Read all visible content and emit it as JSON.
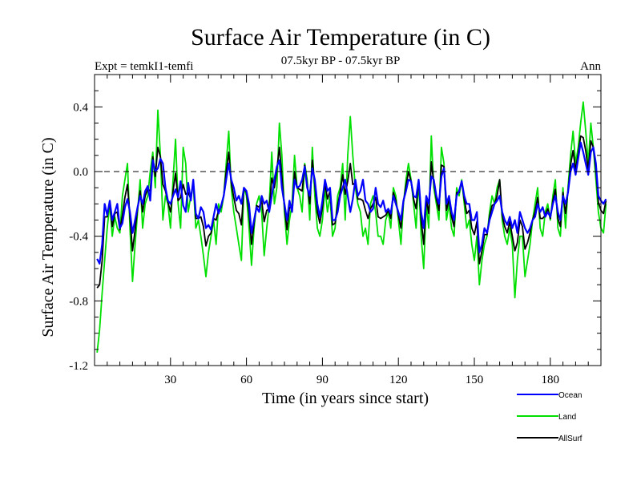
{
  "chart_data": {
    "type": "line",
    "title": "Surface Air Temperature (in C)",
    "subtitle_left": "Expt = temkI1-temfi",
    "subtitle_center": "07.5kyr BP - 07.5kyr BP",
    "subtitle_right": "Ann",
    "xlabel": "Time (in years since start)",
    "ylabel": "Surface Air Temperature (in C)",
    "xlim": [
      0,
      200
    ],
    "ylim": [
      -1.2,
      0.6
    ],
    "xticks": [
      30,
      60,
      90,
      120,
      150,
      180
    ],
    "xtick_labels": [
      "30",
      "60",
      "90",
      "120",
      "150",
      "180"
    ],
    "yticks": [
      -1.2,
      -0.8,
      -0.4,
      0.0,
      0.4
    ],
    "ytick_labels": [
      "-1.2",
      "-0.8",
      "-0.4",
      "0.0",
      "0.4"
    ],
    "reference_line": 0.0,
    "x_start": 1,
    "series": [
      {
        "name": "Ocean",
        "color": "#0000ff",
        "values": [
          -0.54,
          -0.57,
          -0.45,
          -0.2,
          -0.27,
          -0.18,
          -0.3,
          -0.25,
          -0.2,
          -0.35,
          -0.32,
          -0.22,
          -0.17,
          -0.25,
          -0.38,
          -0.3,
          -0.22,
          -0.15,
          -0.2,
          -0.12,
          -0.09,
          -0.18,
          0.07,
          0.0,
          0.02,
          0.08,
          0.05,
          -0.1,
          -0.18,
          -0.2,
          -0.15,
          -0.11,
          -0.16,
          -0.06,
          -0.21,
          -0.25,
          -0.07,
          -0.18,
          -0.05,
          -0.26,
          -0.29,
          -0.22,
          -0.25,
          -0.35,
          -0.33,
          -0.36,
          -0.28,
          -0.2,
          -0.26,
          -0.21,
          -0.15,
          -0.05,
          0.05,
          -0.05,
          -0.1,
          -0.18,
          -0.15,
          -0.2,
          -0.1,
          -0.12,
          -0.2,
          -0.38,
          -0.3,
          -0.22,
          -0.25,
          -0.15,
          -0.2,
          -0.18,
          -0.25,
          -0.15,
          -0.05,
          0.03,
          0.07,
          -0.1,
          -0.2,
          -0.3,
          -0.18,
          -0.25,
          -0.05,
          -0.1,
          -0.09,
          -0.05,
          0.03,
          -0.1,
          -0.15,
          0.02,
          -0.05,
          -0.2,
          -0.28,
          -0.18,
          -0.05,
          -0.12,
          -0.1,
          -0.3,
          -0.3,
          -0.25,
          -0.15,
          -0.1,
          -0.05,
          -0.15,
          -0.25,
          -0.17,
          -0.05,
          -0.15,
          -0.12,
          -0.05,
          -0.18,
          -0.2,
          -0.25,
          -0.23,
          -0.1,
          -0.2,
          -0.22,
          -0.18,
          -0.25,
          -0.23,
          -0.26,
          -0.15,
          -0.2,
          -0.25,
          -0.3,
          -0.18,
          -0.12,
          -0.05,
          -0.06,
          -0.15,
          -0.16,
          -0.05,
          -0.25,
          -0.35,
          -0.15,
          -0.2,
          -0.03,
          -0.05,
          -0.15,
          -0.2,
          -0.03,
          0.02,
          -0.2,
          -0.15,
          -0.25,
          -0.3,
          -0.15,
          -0.12,
          -0.06,
          -0.15,
          -0.2,
          -0.2,
          -0.3,
          -0.3,
          -0.25,
          -0.5,
          -0.45,
          -0.35,
          -0.38,
          -0.3,
          -0.25,
          -0.2,
          -0.18,
          -0.15,
          -0.25,
          -0.3,
          -0.33,
          -0.28,
          -0.35,
          -0.3,
          -0.38,
          -0.25,
          -0.3,
          -0.35,
          -0.38,
          -0.35,
          -0.3,
          -0.28,
          -0.2,
          -0.25,
          -0.22,
          -0.28,
          -0.25,
          -0.28,
          -0.2,
          -0.15,
          -0.25,
          -0.3,
          -0.15,
          -0.2,
          -0.13,
          0.0,
          0.05,
          -0.02,
          0.08,
          0.18,
          0.12,
          0.05,
          -0.02,
          0.12,
          0.15,
          0.05,
          -0.15,
          -0.18,
          -0.2,
          -0.17
        ]
      },
      {
        "name": "Land",
        "color": "#00e000",
        "values": [
          -1.12,
          -0.98,
          -0.75,
          -0.55,
          -0.35,
          -0.2,
          -0.4,
          -0.28,
          -0.35,
          -0.38,
          -0.15,
          -0.05,
          0.05,
          -0.35,
          -0.68,
          -0.45,
          -0.25,
          -0.05,
          -0.35,
          -0.2,
          -0.15,
          0.0,
          0.12,
          -0.1,
          0.38,
          0.1,
          -0.3,
          -0.15,
          -0.2,
          -0.35,
          -0.05,
          0.2,
          -0.2,
          -0.35,
          0.15,
          0.05,
          -0.25,
          -0.15,
          -0.08,
          -0.35,
          -0.3,
          -0.4,
          -0.52,
          -0.65,
          -0.5,
          -0.4,
          -0.3,
          -0.45,
          -0.2,
          -0.25,
          -0.15,
          0.05,
          0.25,
          -0.1,
          -0.25,
          -0.35,
          -0.45,
          -0.55,
          -0.1,
          -0.15,
          -0.35,
          -0.58,
          -0.35,
          -0.2,
          -0.15,
          -0.25,
          -0.52,
          -0.35,
          -0.2,
          0.12,
          -0.2,
          -0.1,
          0.3,
          0.1,
          -0.25,
          -0.45,
          -0.3,
          -0.2,
          0.1,
          -0.1,
          -0.15,
          -0.25,
          0.05,
          -0.05,
          -0.3,
          0.15,
          -0.15,
          -0.35,
          -0.4,
          -0.3,
          -0.1,
          -0.25,
          -0.15,
          -0.4,
          -0.35,
          -0.15,
          -0.1,
          0.05,
          -0.3,
          0.1,
          0.34,
          0.1,
          -0.1,
          -0.2,
          -0.25,
          -0.4,
          -0.35,
          -0.45,
          -0.2,
          -0.15,
          -0.25,
          -0.4,
          -0.4,
          -0.45,
          -0.3,
          -0.25,
          -0.35,
          -0.1,
          -0.15,
          -0.3,
          -0.45,
          -0.2,
          -0.05,
          0.05,
          -0.05,
          -0.2,
          -0.35,
          -0.05,
          -0.4,
          -0.6,
          -0.2,
          -0.35,
          0.22,
          -0.1,
          -0.2,
          -0.3,
          0.15,
          0.05,
          -0.3,
          -0.2,
          -0.35,
          -0.4,
          -0.1,
          -0.15,
          -0.05,
          -0.2,
          -0.35,
          -0.3,
          -0.45,
          -0.55,
          -0.4,
          -0.7,
          -0.55,
          -0.45,
          -0.4,
          -0.25,
          -0.15,
          -0.2,
          -0.1,
          -0.05,
          -0.3,
          -0.4,
          -0.45,
          -0.35,
          -0.45,
          -0.78,
          -0.55,
          -0.4,
          -0.4,
          -0.65,
          -0.55,
          -0.45,
          -0.3,
          -0.2,
          -0.1,
          -0.35,
          -0.4,
          -0.25,
          -0.2,
          -0.3,
          -0.15,
          -0.05,
          -0.35,
          -0.4,
          -0.1,
          -0.35,
          -0.1,
          0.1,
          0.25,
          0.05,
          0.15,
          0.3,
          0.43,
          0.25,
          0.05,
          0.3,
          0.15,
          -0.05,
          -0.25,
          -0.35,
          -0.38,
          -0.2
        ]
      },
      {
        "name": "AllSurf",
        "color": "#000000",
        "values": [
          -0.72,
          -0.7,
          -0.55,
          -0.28,
          -0.28,
          -0.19,
          -0.34,
          -0.26,
          -0.25,
          -0.36,
          -0.27,
          -0.16,
          -0.08,
          -0.28,
          -0.49,
          -0.36,
          -0.23,
          -0.12,
          -0.25,
          -0.15,
          -0.11,
          -0.12,
          0.09,
          -0.03,
          0.15,
          0.09,
          -0.08,
          -0.12,
          -0.19,
          -0.25,
          -0.12,
          -0.01,
          -0.18,
          -0.16,
          -0.08,
          -0.14,
          -0.13,
          -0.17,
          -0.06,
          -0.29,
          -0.29,
          -0.28,
          -0.34,
          -0.46,
          -0.4,
          -0.38,
          -0.29,
          -0.3,
          -0.24,
          -0.22,
          -0.15,
          0.0,
          0.12,
          -0.07,
          -0.16,
          -0.24,
          -0.26,
          -0.33,
          -0.1,
          -0.13,
          -0.25,
          -0.45,
          -0.32,
          -0.21,
          -0.22,
          -0.18,
          -0.31,
          -0.24,
          -0.23,
          -0.04,
          -0.1,
          0.01,
          0.15,
          -0.03,
          -0.22,
          -0.36,
          -0.22,
          -0.23,
          0.0,
          -0.1,
          -0.11,
          -0.12,
          0.04,
          -0.08,
          -0.2,
          0.07,
          -0.08,
          -0.25,
          -0.32,
          -0.22,
          -0.07,
          -0.17,
          -0.12,
          -0.33,
          -0.32,
          -0.21,
          -0.13,
          -0.02,
          -0.14,
          -0.06,
          0.05,
          -0.08,
          -0.07,
          -0.17,
          -0.17,
          -0.18,
          -0.24,
          -0.29,
          -0.23,
          -0.2,
          -0.16,
          -0.28,
          -0.29,
          -0.28,
          -0.27,
          -0.24,
          -0.29,
          -0.13,
          -0.18,
          -0.27,
          -0.35,
          -0.19,
          -0.09,
          0.0,
          -0.06,
          -0.17,
          -0.23,
          -0.05,
          -0.3,
          -0.45,
          -0.17,
          -0.26,
          0.06,
          -0.07,
          -0.17,
          -0.24,
          0.04,
          0.03,
          -0.24,
          -0.17,
          -0.28,
          -0.34,
          -0.13,
          -0.13,
          -0.06,
          -0.17,
          -0.26,
          -0.24,
          -0.35,
          -0.39,
          -0.31,
          -0.57,
          -0.49,
          -0.39,
          -0.39,
          -0.28,
          -0.21,
          -0.2,
          -0.15,
          -0.05,
          -0.27,
          -0.34,
          -0.38,
          -0.31,
          -0.4,
          -0.49,
          -0.44,
          -0.3,
          -0.34,
          -0.48,
          -0.44,
          -0.38,
          -0.3,
          -0.25,
          -0.16,
          -0.29,
          -0.29,
          -0.27,
          -0.23,
          -0.29,
          -0.18,
          -0.11,
          -0.29,
          -0.34,
          -0.13,
          -0.26,
          -0.12,
          0.04,
          0.13,
          0.01,
          0.11,
          0.22,
          0.21,
          0.13,
          0.01,
          0.19,
          0.15,
          0.01,
          -0.19,
          -0.24,
          -0.26,
          -0.18
        ]
      }
    ],
    "legend_placement": "below plot, right"
  }
}
